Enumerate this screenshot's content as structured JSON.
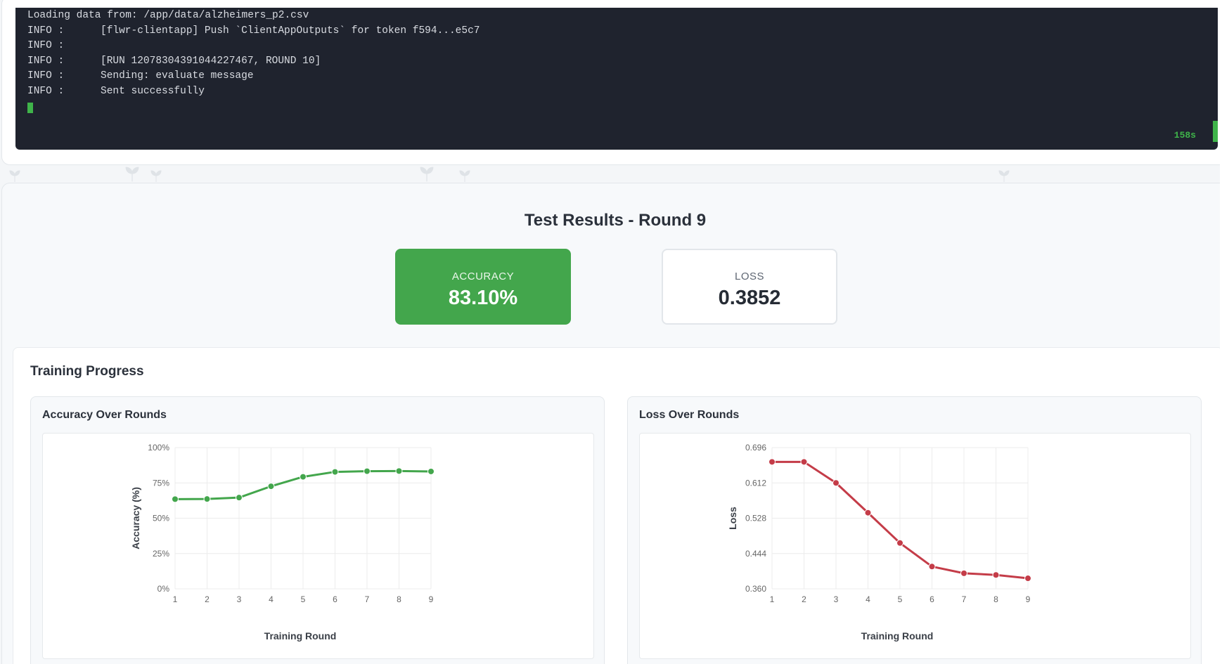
{
  "terminal": {
    "lines": [
      {
        "prefix": "",
        "text": "Loading data from: /app/data/alzheimers_p2.csv"
      },
      {
        "prefix": "INFO :",
        "text": "[flwr-clientapp] Push `ClientAppOutputs` for token f594...e5c7"
      },
      {
        "prefix": "INFO :",
        "text": ""
      },
      {
        "prefix": "INFO :",
        "text": "[RUN 12078304391044227467, ROUND 10]"
      },
      {
        "prefix": "INFO :",
        "text": "Sending: evaluate message"
      },
      {
        "prefix": "INFO :",
        "text": "Sent successfully"
      }
    ],
    "elapsed": "158s",
    "accent_color": "#3fb44a"
  },
  "results": {
    "title": "Test Results - Round 9",
    "accuracy_label": "ACCURACY",
    "accuracy_value": "83.10%",
    "loss_label": "LOSS",
    "loss_value": "0.3852",
    "accent_color": "#43a64c"
  },
  "training": {
    "title": "Training Progress",
    "accuracy_chart_title": "Accuracy Over Rounds",
    "loss_chart_title": "Loss Over Rounds"
  },
  "chart_data": [
    {
      "type": "line",
      "title": "Accuracy Over Rounds",
      "xlabel": "Training Round",
      "ylabel": "Accuracy (%)",
      "x": [
        1,
        2,
        3,
        4,
        5,
        6,
        7,
        8,
        9
      ],
      "values": [
        63.5,
        63.6,
        64.6,
        72.6,
        79.3,
        82.8,
        83.3,
        83.4,
        83.1
      ],
      "ylim": [
        0,
        100
      ],
      "yticks": [
        "0%",
        "25%",
        "50%",
        "75%",
        "100%"
      ],
      "ytick_values": [
        0,
        25,
        50,
        75,
        100
      ],
      "color": "#43a64c",
      "grid": true
    },
    {
      "type": "line",
      "title": "Loss Over Rounds",
      "xlabel": "Training Round",
      "ylabel": "Loss",
      "x": [
        1,
        2,
        3,
        4,
        5,
        6,
        7,
        8,
        9
      ],
      "values": [
        0.662,
        0.662,
        0.612,
        0.541,
        0.469,
        0.413,
        0.397,
        0.393,
        0.385
      ],
      "ylim": [
        0.36,
        0.696
      ],
      "yticks": [
        "0.360",
        "0.444",
        "0.528",
        "0.612",
        "0.696"
      ],
      "ytick_values": [
        0.36,
        0.444,
        0.528,
        0.612,
        0.696
      ],
      "color": "#c43c48",
      "grid": true
    }
  ]
}
